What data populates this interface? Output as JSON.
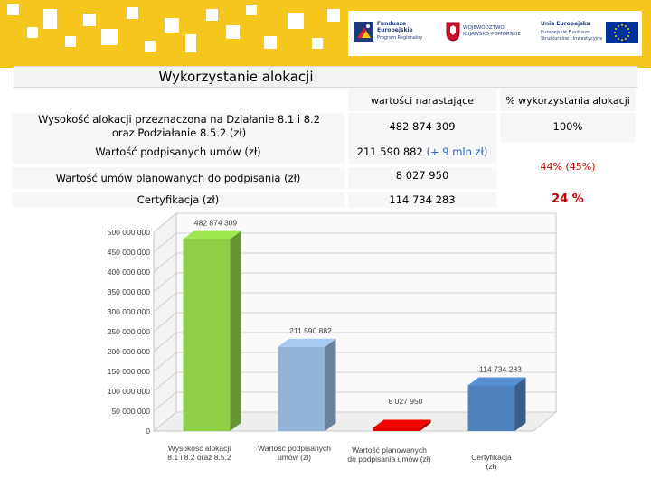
{
  "header": {
    "funds_logo": {
      "line1": "Fundusze",
      "line2": "Europejskie",
      "line3": "Program Regionalny"
    },
    "region_logo": {
      "line1": "WOJEWÓDZTWO",
      "line2": "KUJAWSKO-POMORSKIE"
    },
    "eu_logo": {
      "line1": "Unia Europejska",
      "line2": "Europejskie Fundusze",
      "line3": "Strukturalne i Inwestycyjne"
    }
  },
  "table": {
    "title": "Wykorzystanie alokacji",
    "col_values": "wartości  narastające",
    "col_percent": "% wykorzystania alokacji",
    "rows": {
      "allocation_label": "Wysokość alokacji przeznaczona na Działanie 8.1 i  8.2 oraz Podziałanie 8.5.2 (zł)",
      "allocation_value": "482 874 309",
      "allocation_percent": "100%",
      "signed_label": "Wartość podpisanych umów (zł)",
      "signed_value": "211 590 882",
      "signed_extra": "(+ 9 mln zł)",
      "signed_percent_a": "44%",
      "signed_percent_b": "(45%)",
      "planned_label": "Wartość  umów planowanych do podpisania (zł)",
      "planned_value": "8 027 950",
      "cert_label": "Certyfikacja (zł)",
      "cert_value": "114 734 283",
      "cert_percent": "24 %"
    }
  },
  "chart_data": {
    "type": "bar",
    "categories": [
      "Wysokość alokacji 8.1 i 8.2 oraz 8.5.2",
      "Wartość podpisanych umów (zł)",
      "Wartość planowanych do podpisania umów (zł)",
      "Certyfikacja (zł)"
    ],
    "category_lines": [
      [
        "Wysokość alokacji",
        "8.1 i 8.2 oraz 8.5.2"
      ],
      [
        "Wartość podpisanych",
        "umów (zł)"
      ],
      [
        "Wartość planowanych",
        "do podpisania umów (zł)"
      ],
      [
        "Certyfikacja",
        "(zł)"
      ]
    ],
    "values": [
      482874309,
      211590882,
      8027950,
      114734283
    ],
    "value_labels": [
      "482 874 309",
      "211 590 882",
      "8 027 950",
      "114 734 283"
    ],
    "bar_colors": [
      "#8fcf48",
      "#95b3d7",
      "#e00000",
      "#4f81bd"
    ],
    "ylim": [
      0,
      500000000
    ],
    "yticks": [
      0,
      50000000,
      100000000,
      150000000,
      200000000,
      250000000,
      300000000,
      350000000,
      400000000,
      450000000,
      500000000
    ],
    "ytick_labels": [
      "0",
      "50 000 000",
      "100 000 000",
      "150 000 000",
      "200 000 000",
      "250 000 000",
      "300 000 000",
      "350 000 000",
      "400 000 000",
      "450 000 000",
      "500 000 000"
    ],
    "grid": true,
    "title": "",
    "xlabel": "",
    "ylabel": ""
  }
}
